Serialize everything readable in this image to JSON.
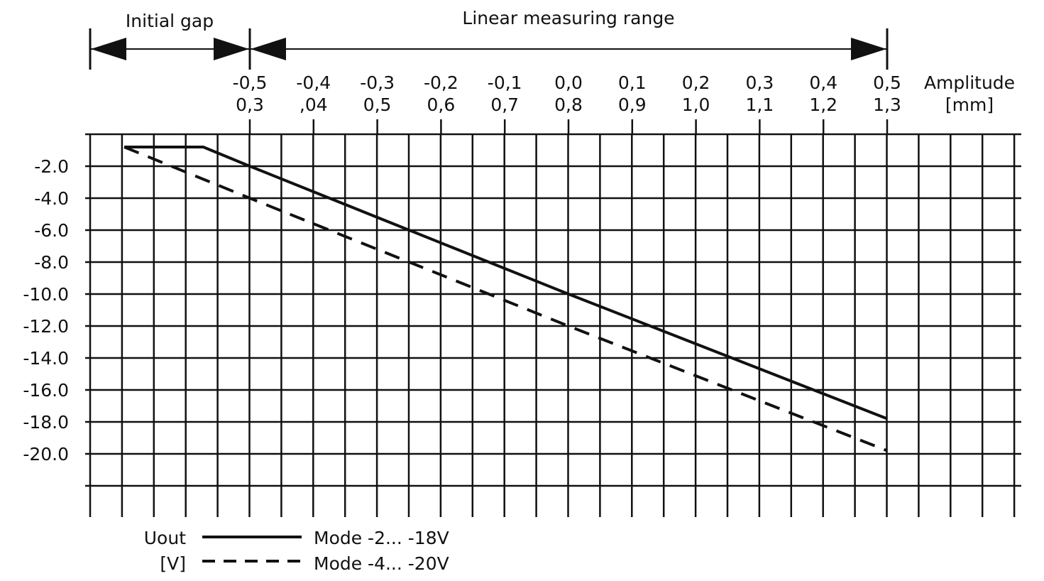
{
  "chart_data": {
    "type": "line",
    "title": "",
    "annotations": {
      "initial_gap": "Initial gap",
      "linear_range": "Linear measuring range"
    },
    "x_axis_label": {
      "line1": "Amplitude",
      "line2": "[mm]"
    },
    "x_ticks_amplitude": [
      "-0,5",
      "-0,4",
      "-0,3",
      "-0,2",
      "-0,1",
      "0,0",
      "0,1",
      "0,2",
      "0,3",
      "0,4",
      "0,5"
    ],
    "x_ticks_gap": [
      "0,3",
      ",04",
      "0,5",
      "0,6",
      "0,7",
      "0,8",
      "0,9",
      "1,0",
      "1,1",
      "1,2",
      "1,3"
    ],
    "y_axis_label": {
      "line1": "Uout",
      "line2": "[V]"
    },
    "y_ticks": [
      "-2.0",
      "-4.0",
      "-6.0",
      "-8.0",
      "-10.0",
      "-12.0",
      "-14.0",
      "-16.0",
      "-18.0",
      "-20.0"
    ],
    "x_unit": "Amplitude [mm]",
    "xlim": [
      -0.75,
      0.71
    ],
    "ylim": [
      -22,
      0
    ],
    "grid": true,
    "series": [
      {
        "name": "Mode -2... -18V",
        "style": "solid",
        "x": [
          -0.697,
          -0.573,
          -0.5,
          0.0,
          0.5
        ],
        "y": [
          -0.8,
          -0.8,
          -2.0,
          -10.0,
          -17.8
        ]
      },
      {
        "name": "Mode -4... -20V",
        "style": "dashed",
        "x": [
          -0.697,
          -0.5,
          0.0,
          0.5
        ],
        "y": [
          -0.8,
          -4.0,
          -12.0,
          -19.8
        ]
      }
    ],
    "legend_position": "bottom-left"
  }
}
